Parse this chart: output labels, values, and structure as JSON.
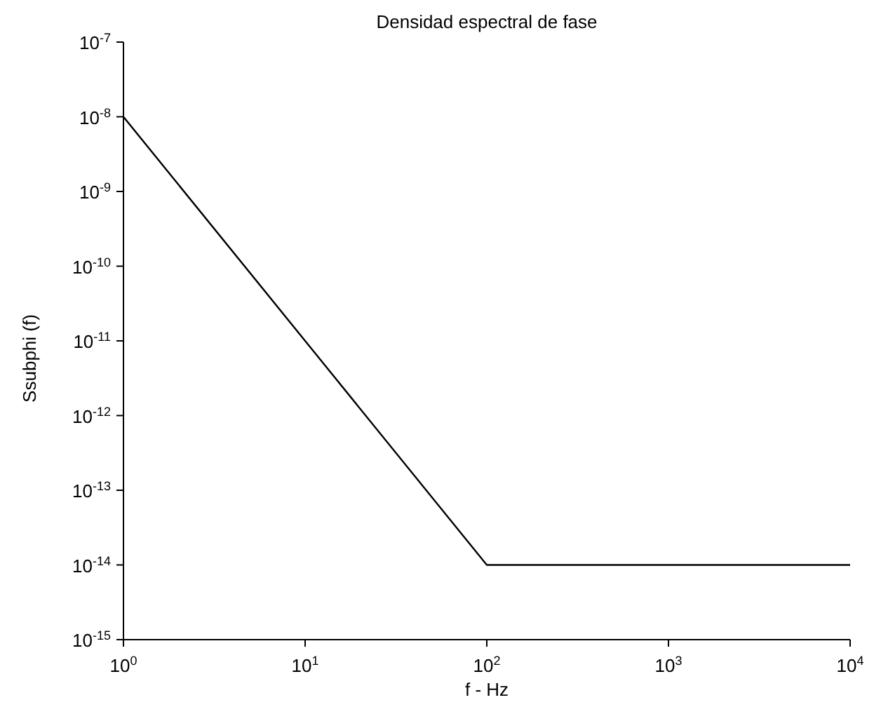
{
  "chart_data": {
    "type": "line",
    "title": "Densidad espectral de fase",
    "xlabel": "f - Hz",
    "ylabel": "Ssubphi (f)",
    "log": "xy",
    "x": [
      1,
      100,
      10000
    ],
    "series": [
      {
        "color": "#000000",
        "values": [
          1e-08,
          1e-14,
          1e-14
        ]
      }
    ],
    "xlim": [
      1,
      10000
    ],
    "ylim": [
      1e-15,
      1e-07
    ],
    "xticks": [
      {
        "value": 1,
        "label": "10$^{0}$"
      },
      {
        "value": 10,
        "label": "10$^{1}$"
      },
      {
        "value": 100,
        "label": "10$^{2}$"
      },
      {
        "value": 1000,
        "label": "10$^{3}$"
      },
      {
        "value": 10000,
        "label": "10$^{4}$"
      }
    ],
    "yticks": [
      {
        "value": 1e-15,
        "label": "10$^{-15}$"
      },
      {
        "value": 1e-14,
        "label": "10$^{-14}$"
      },
      {
        "value": 1e-13,
        "label": "10$^{-13}$"
      },
      {
        "value": 1e-12,
        "label": "10$^{-12}$"
      },
      {
        "value": 1e-11,
        "label": "10$^{-11}$"
      },
      {
        "value": 1e-10,
        "label": "10$^{-10}$"
      },
      {
        "value": 1e-09,
        "label": "10$^{-9}$"
      },
      {
        "value": 1e-08,
        "label": "10$^{-8}$"
      },
      {
        "value": 1e-07,
        "label": "10$^{-7}$"
      }
    ]
  }
}
